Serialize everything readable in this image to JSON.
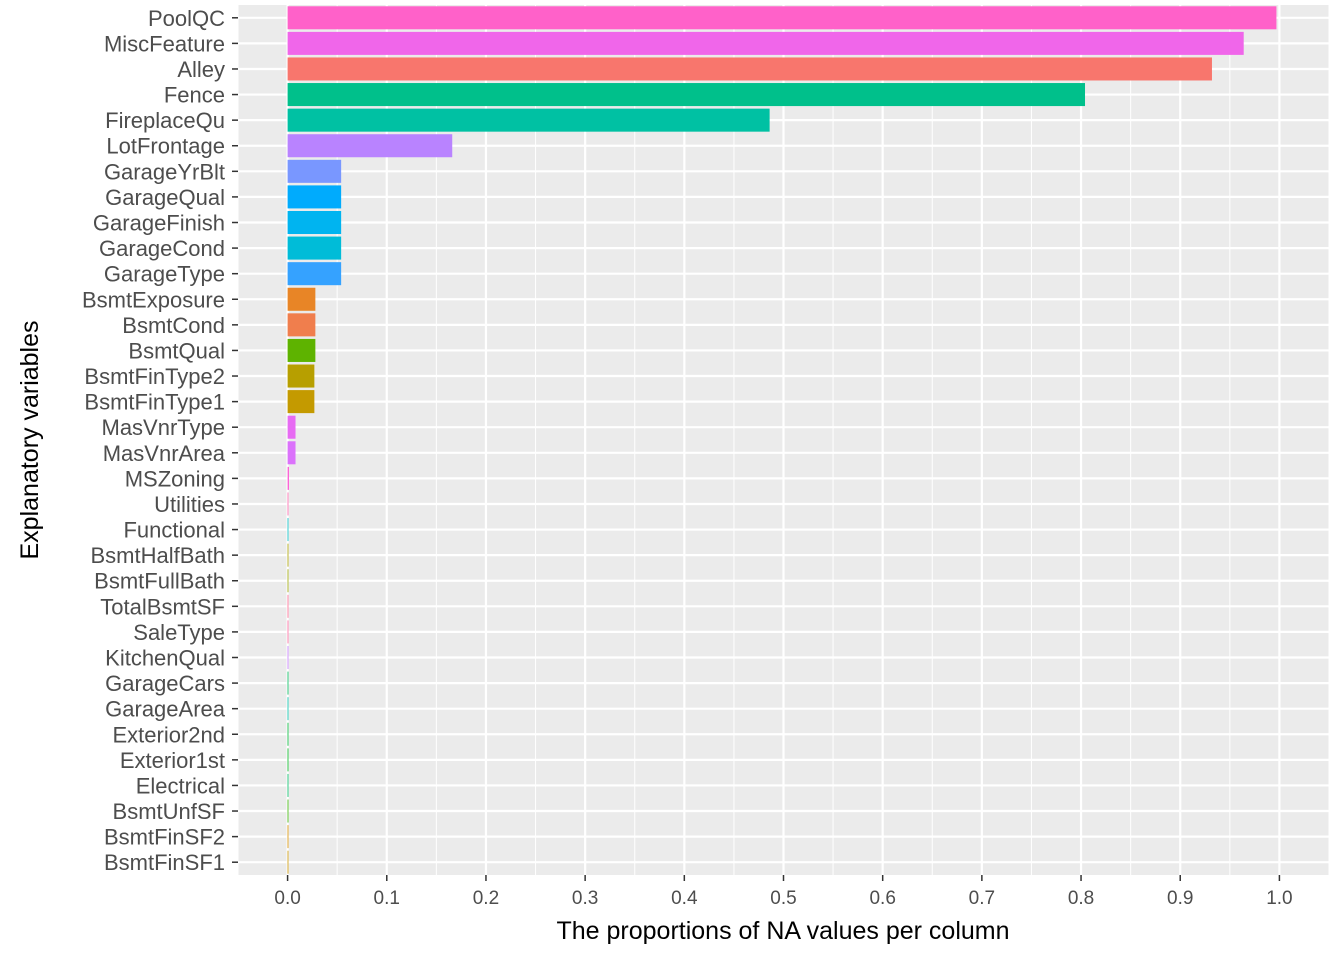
{
  "chart_data": {
    "type": "bar",
    "orientation": "horizontal",
    "xlabel": "The proportions of NA values per column",
    "ylabel": "Explanatory variables",
    "xlim": [
      -0.05,
      1.05
    ],
    "xticks": [
      "0.0",
      "0.1",
      "0.2",
      "0.3",
      "0.4",
      "0.5",
      "0.6",
      "0.7",
      "0.8",
      "0.9",
      "1.0"
    ],
    "grid": true,
    "legend": "none",
    "panel_background": "#ebebeb",
    "categories": [
      "PoolQC",
      "MiscFeature",
      "Alley",
      "Fence",
      "FireplaceQu",
      "LotFrontage",
      "GarageYrBlt",
      "GarageQual",
      "GarageFinish",
      "GarageCond",
      "GarageType",
      "BsmtExposure",
      "BsmtCond",
      "BsmtQual",
      "BsmtFinType2",
      "BsmtFinType1",
      "MasVnrType",
      "MasVnrArea",
      "MSZoning",
      "Utilities",
      "Functional",
      "BsmtHalfBath",
      "BsmtFullBath",
      "TotalBsmtSF",
      "SaleType",
      "KitchenQual",
      "GarageCars",
      "GarageArea",
      "Exterior2nd",
      "Exterior1st",
      "Electrical",
      "BsmtUnfSF",
      "BsmtFinSF2",
      "BsmtFinSF1"
    ],
    "values": [
      0.997,
      0.964,
      0.932,
      0.804,
      0.486,
      0.166,
      0.054,
      0.054,
      0.054,
      0.054,
      0.054,
      0.028,
      0.028,
      0.028,
      0.027,
      0.027,
      0.008,
      0.008,
      0.0014,
      0.0007,
      0.0007,
      0.0007,
      0.0007,
      0.0003,
      0.0003,
      0.0003,
      0.0003,
      0.0003,
      0.0003,
      0.0003,
      0.0003,
      0.0003,
      0.0003,
      0.0003
    ],
    "colors": [
      "#FF61C9",
      "#F066EA",
      "#F8766D",
      "#00C08B",
      "#00C1A3",
      "#B983FF",
      "#7997FF",
      "#00ABFD",
      "#00B4F0",
      "#00BCD8",
      "#35A2FF",
      "#E88526",
      "#F07E4D",
      "#5EB300",
      "#B79F00",
      "#C49A00",
      "#E76BF3",
      "#DB72FB",
      "#FC61D5",
      "#FF65AC",
      "#00BFC4",
      "#ABA300",
      "#9CA700",
      "#FF6C92",
      "#FF689F",
      "#C77CFF",
      "#00BD5C",
      "#00C1A9",
      "#00BA38",
      "#00B81F",
      "#00BE67",
      "#39B600",
      "#D89000",
      "#CD9600"
    ]
  }
}
